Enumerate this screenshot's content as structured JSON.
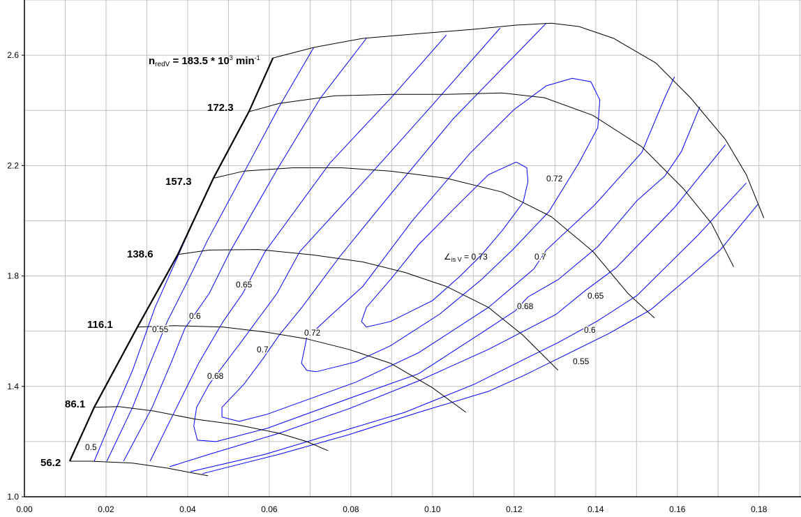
{
  "chart_data": {
    "type": "line",
    "title": "",
    "xlabel": "",
    "ylabel": "",
    "xlim": [
      0.0,
      0.1903
    ],
    "ylim": [
      1.0,
      2.8
    ],
    "x_ticks": [
      "0.00",
      "0.02",
      "0.04",
      "0.06",
      "0.08",
      "0.10",
      "0.12",
      "0.14",
      "0.16",
      "0.18"
    ],
    "y_ticks": [
      "1.0",
      "1.4",
      "1.8",
      "2.2",
      "2.6"
    ],
    "grid": true,
    "grid_x_step": 0.01,
    "grid_y_step": 0.2,
    "colors": {
      "speed_lines": "#000000",
      "efficiency_lines": "#0000ff",
      "grid": "#c0c0c0"
    },
    "surge_line": [
      [
        0.0111,
        1.129
      ],
      [
        0.0171,
        1.324
      ],
      [
        0.0277,
        1.615
      ],
      [
        0.0376,
        1.878
      ],
      [
        0.0463,
        2.154
      ],
      [
        0.055,
        2.395
      ],
      [
        0.0609,
        2.59
      ]
    ],
    "speed_lines": [
      {
        "label": "56.2",
        "points": [
          [
            0.0111,
            1.129
          ],
          [
            0.0162,
            1.129
          ],
          [
            0.0265,
            1.122
          ],
          [
            0.035,
            1.104
          ],
          [
            0.0402,
            1.089
          ],
          [
            0.045,
            1.076
          ]
        ]
      },
      {
        "label": "86.1",
        "points": [
          [
            0.0171,
            1.324
          ],
          [
            0.0231,
            1.327
          ],
          [
            0.0316,
            1.311
          ],
          [
            0.0419,
            1.281
          ],
          [
            0.0521,
            1.261
          ],
          [
            0.0624,
            1.23
          ],
          [
            0.0692,
            1.2
          ],
          [
            0.0744,
            1.167
          ]
        ]
      },
      {
        "label": "116.1",
        "points": [
          [
            0.0277,
            1.615
          ],
          [
            0.0368,
            1.62
          ],
          [
            0.0487,
            1.615
          ],
          [
            0.059,
            1.597
          ],
          [
            0.0692,
            1.572
          ],
          [
            0.0795,
            1.534
          ],
          [
            0.0897,
            1.484
          ],
          [
            0.1,
            1.395
          ],
          [
            0.1082,
            1.306
          ]
        ]
      },
      {
        "label": "138.6",
        "points": [
          [
            0.0376,
            1.878
          ],
          [
            0.0453,
            1.894
          ],
          [
            0.0573,
            1.896
          ],
          [
            0.0709,
            1.876
          ],
          [
            0.0829,
            1.851
          ],
          [
            0.0932,
            1.813
          ],
          [
            0.1034,
            1.762
          ],
          [
            0.1137,
            1.686
          ],
          [
            0.1222,
            1.585
          ],
          [
            0.1308,
            1.458
          ]
        ]
      },
      {
        "label": "157.3",
        "points": [
          [
            0.0463,
            2.154
          ],
          [
            0.0538,
            2.18
          ],
          [
            0.0658,
            2.192
          ],
          [
            0.0778,
            2.192
          ],
          [
            0.0897,
            2.18
          ],
          [
            0.1034,
            2.154
          ],
          [
            0.1171,
            2.104
          ],
          [
            0.1291,
            2.015
          ],
          [
            0.1393,
            1.889
          ],
          [
            0.1479,
            1.737
          ],
          [
            0.1544,
            1.648
          ]
        ]
      },
      {
        "label": "172.3",
        "points": [
          [
            0.055,
            2.395
          ],
          [
            0.0624,
            2.425
          ],
          [
            0.0761,
            2.453
          ],
          [
            0.0897,
            2.458
          ],
          [
            0.1034,
            2.458
          ],
          [
            0.1171,
            2.463
          ],
          [
            0.1274,
            2.446
          ],
          [
            0.1393,
            2.382
          ],
          [
            0.1513,
            2.268
          ],
          [
            0.1615,
            2.116
          ],
          [
            0.1684,
            1.99
          ],
          [
            0.1738,
            1.833
          ]
        ]
      },
      {
        "label": "183.5",
        "label_prefix": "n",
        "label_sub": "redV",
        "label_mid": " = 183.5 * 10",
        "label_sup": "3",
        "label_unit": " min",
        "label_unit_sup": "-1",
        "points": [
          [
            0.0609,
            2.59
          ],
          [
            0.0709,
            2.628
          ],
          [
            0.0829,
            2.661
          ],
          [
            0.0966,
            2.678
          ],
          [
            0.1103,
            2.694
          ],
          [
            0.1205,
            2.709
          ],
          [
            0.1291,
            2.716
          ],
          [
            0.1359,
            2.704
          ],
          [
            0.1444,
            2.661
          ],
          [
            0.1547,
            2.572
          ],
          [
            0.1632,
            2.446
          ],
          [
            0.1718,
            2.294
          ],
          [
            0.1769,
            2.167
          ],
          [
            0.1812,
            2.01
          ]
        ]
      }
    ],
    "efficiency_contours": [
      {
        "value": "0.5",
        "points": [
          [
            0.0171,
            1.129
          ],
          [
            0.0226,
            1.324
          ],
          [
            0.0265,
            1.458
          ],
          [
            0.032,
            1.686
          ],
          [
            0.0385,
            1.901
          ],
          [
            0.0448,
            2.109
          ],
          [
            0.0463,
            2.154
          ]
        ]
      },
      {
        "value": "0.55",
        "points": [
          [
            0.0202,
            1.129
          ],
          [
            0.0265,
            1.324
          ],
          [
            0.0308,
            1.484
          ],
          [
            0.035,
            1.635
          ],
          [
            0.0402,
            1.787
          ],
          [
            0.0448,
            1.927
          ],
          [
            0.0538,
            2.175
          ],
          [
            0.0624,
            2.413
          ],
          [
            0.0709,
            2.628
          ]
        ]
      },
      {
        "value": "0.6",
        "points": [
          [
            0.0243,
            1.129
          ],
          [
            0.0313,
            1.324
          ],
          [
            0.0359,
            1.484
          ],
          [
            0.0393,
            1.61
          ],
          [
            0.0453,
            1.737
          ],
          [
            0.0504,
            1.889
          ],
          [
            0.0619,
            2.185
          ],
          [
            0.0726,
            2.446
          ],
          [
            0.0838,
            2.661
          ]
        ]
      },
      {
        "value": "0.65",
        "points": [
          [
            0.0308,
            1.129
          ],
          [
            0.0373,
            1.324
          ],
          [
            0.0427,
            1.484
          ],
          [
            0.0487,
            1.635
          ],
          [
            0.0535,
            1.737
          ],
          [
            0.059,
            1.889
          ],
          [
            0.0749,
            2.21
          ],
          [
            0.0903,
            2.453
          ],
          [
            0.1034,
            2.673
          ]
        ]
      },
      {
        "value": "0.65",
        "points": [
          [
            0.0356,
            1.109
          ],
          [
            0.0453,
            1.154
          ],
          [
            0.0624,
            1.23
          ],
          [
            0.0795,
            1.319
          ],
          [
            0.0966,
            1.42
          ],
          [
            0.1137,
            1.534
          ],
          [
            0.1303,
            1.661
          ],
          [
            0.1376,
            1.749
          ],
          [
            0.145,
            1.83
          ],
          [
            0.1593,
            2.048
          ],
          [
            0.1718,
            2.276
          ]
        ]
      },
      {
        "value": "0.6",
        "points": [
          [
            0.0407,
            1.091
          ],
          [
            0.059,
            1.154
          ],
          [
            0.0761,
            1.23
          ],
          [
            0.0932,
            1.306
          ],
          [
            0.1103,
            1.408
          ],
          [
            0.1222,
            1.496
          ],
          [
            0.1308,
            1.559
          ],
          [
            0.1402,
            1.635
          ],
          [
            0.1501,
            1.729
          ],
          [
            0.165,
            1.947
          ],
          [
            0.1769,
            2.137
          ]
        ]
      },
      {
        "value": "0.55",
        "points": [
          [
            0.0436,
            1.084
          ],
          [
            0.0624,
            1.154
          ],
          [
            0.0795,
            1.225
          ],
          [
            0.0966,
            1.306
          ],
          [
            0.1137,
            1.382
          ],
          [
            0.1222,
            1.438
          ],
          [
            0.1433,
            1.592
          ],
          [
            0.1535,
            1.678
          ],
          [
            0.1632,
            1.8
          ],
          [
            0.1706,
            1.896
          ],
          [
            0.1798,
            2.061
          ]
        ]
      },
      {
        "value": "0.68",
        "points": [
          [
            0.1166,
            2.699
          ],
          [
            0.1,
            2.42
          ],
          [
            0.0858,
            2.185
          ],
          [
            0.0675,
            1.889
          ],
          [
            0.0619,
            1.737
          ],
          [
            0.053,
            1.559
          ],
          [
            0.0453,
            1.408
          ],
          [
            0.0422,
            1.324
          ],
          [
            0.0415,
            1.256
          ],
          [
            0.0424,
            1.205
          ],
          [
            0.047,
            1.2
          ],
          [
            0.0595,
            1.248
          ],
          [
            0.0812,
            1.365
          ],
          [
            0.0966,
            1.446
          ],
          [
            0.1137,
            1.61
          ],
          [
            0.1202,
            1.673
          ],
          [
            0.1234,
            1.724
          ],
          [
            0.1308,
            1.787
          ],
          [
            0.1405,
            1.906
          ],
          [
            0.1501,
            2.073
          ],
          [
            0.1569,
            2.162
          ],
          [
            0.161,
            2.251
          ],
          [
            0.1655,
            2.413
          ]
        ]
      },
      {
        "value": "0.7",
        "points": [
          [
            0.1279,
            2.716
          ],
          [
            0.1051,
            2.37
          ],
          [
            0.0897,
            2.096
          ],
          [
            0.0773,
            1.871
          ],
          [
            0.068,
            1.686
          ],
          [
            0.0624,
            1.585
          ],
          [
            0.0585,
            1.501
          ],
          [
            0.0538,
            1.408
          ],
          [
            0.0484,
            1.324
          ],
          [
            0.0484,
            1.289
          ],
          [
            0.0526,
            1.273
          ],
          [
            0.0595,
            1.299
          ],
          [
            0.0812,
            1.415
          ],
          [
            0.0966,
            1.522
          ],
          [
            0.1137,
            1.686
          ],
          [
            0.1248,
            1.825
          ],
          [
            0.1279,
            1.894
          ],
          [
            0.1398,
            2.058
          ],
          [
            0.1513,
            2.248
          ],
          [
            0.1569,
            2.446
          ],
          [
            0.1593,
            2.522
          ]
        ]
      },
      {
        "value": "0.72",
        "points": [
          [
            0.0706,
            1.595
          ],
          [
            0.0744,
            1.648
          ],
          [
            0.0829,
            1.762
          ],
          [
            0.0949,
            1.997
          ],
          [
            0.1091,
            2.243
          ],
          [
            0.12,
            2.403
          ],
          [
            0.1279,
            2.489
          ],
          [
            0.1342,
            2.516
          ],
          [
            0.1388,
            2.504
          ],
          [
            0.141,
            2.438
          ],
          [
            0.1405,
            2.337
          ],
          [
            0.1359,
            2.21
          ],
          [
            0.1285,
            2.033
          ],
          [
            0.1197,
            1.896
          ],
          [
            0.112,
            1.787
          ],
          [
            0.1017,
            1.661
          ],
          [
            0.0897,
            1.547
          ],
          [
            0.0812,
            1.489
          ],
          [
            0.0778,
            1.476
          ],
          [
            0.0715,
            1.453
          ],
          [
            0.0692,
            1.458
          ],
          [
            0.0679,
            1.484
          ],
          [
            0.0692,
            1.577
          ]
        ]
      },
      {
        "value": "0.73",
        "points": [
          [
            0.1205,
            2.213
          ],
          [
            0.1231,
            2.192
          ],
          [
            0.1234,
            2.142
          ],
          [
            0.1222,
            2.066
          ],
          [
            0.1171,
            1.965
          ],
          [
            0.112,
            1.876
          ],
          [
            0.1068,
            1.8
          ],
          [
            0.1,
            1.711
          ],
          [
            0.0897,
            1.635
          ],
          [
            0.0838,
            1.615
          ],
          [
            0.0826,
            1.635
          ],
          [
            0.0838,
            1.686
          ],
          [
            0.0897,
            1.787
          ],
          [
            0.0966,
            1.914
          ],
          [
            0.1051,
            2.041
          ],
          [
            0.1137,
            2.167
          ],
          [
            0.1205,
            2.213
          ]
        ]
      }
    ],
    "efficiency_labels": [
      "0.5",
      "0.55",
      "0.6",
      "0.65",
      "0.68",
      "0.7",
      "0.72",
      "0.72",
      "0.7",
      "0.68",
      "0.65",
      "0.6",
      "0.55"
    ],
    "efficiency_peak_label": {
      "symbol": "∠",
      "sub": "is V",
      "text": " = 0.73"
    }
  }
}
